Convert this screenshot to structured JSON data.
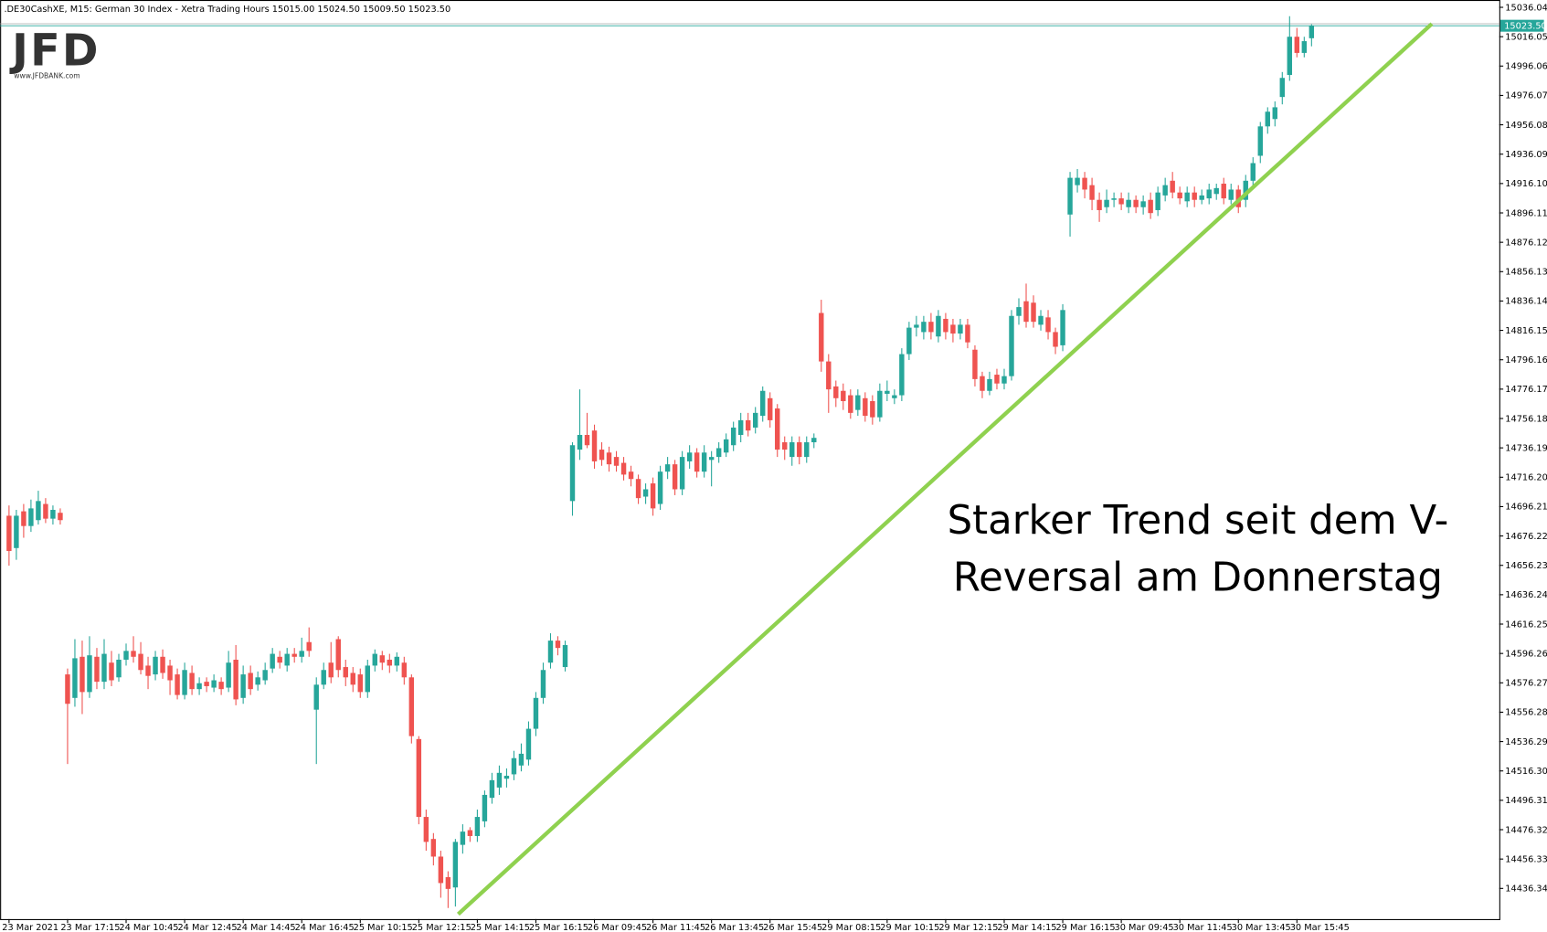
{
  "chart_data": {
    "type": "candlestick",
    "header": ".DE30CashXE, M15:  German 30 Index  - Xetra Trading Hours  15015.00 15024.50 15009.50 15023.50",
    "logo": {
      "mark": "JFD",
      "url": "www.JFDBANK.com"
    },
    "annotation": [
      "Starker Trend seit dem V-",
      "Reversal am Donnerstag"
    ],
    "up_color": "#26a69a",
    "down_color": "#ef5350",
    "last_price": {
      "value": 15023.5,
      "label": "15023.50"
    },
    "ylim": [
      14415.45,
      15041.02
    ],
    "yticks": [
      15036.04,
      15016.05,
      14996.06,
      14976.07,
      14956.08,
      14936.09,
      {
        "value": 14916.1,
        "label": "14916.10"
      },
      14896.11,
      14876.12,
      14856.13,
      14836.14,
      14816.15,
      14796.16,
      14776.17,
      14756.18,
      14736.19,
      {
        "value": 14716.2,
        "label": "14716.20"
      },
      14696.21,
      14676.22,
      14656.23,
      14636.24,
      14616.25,
      14596.26,
      14576.27,
      14556.28,
      14536.29,
      {
        "value": 14516.3,
        "label": "14516.30"
      },
      14496.31,
      14476.32,
      14456.33,
      14436.34
    ],
    "categories": [
      "23 Mar 2021",
      null,
      null,
      null,
      null,
      null,
      null,
      null,
      "23 Mar 17:15",
      null,
      null,
      null,
      null,
      null,
      null,
      null,
      "24 Mar 10:45",
      null,
      null,
      null,
      null,
      null,
      null,
      null,
      "24 Mar 12:45",
      null,
      null,
      null,
      null,
      null,
      null,
      null,
      "24 Mar 14:45",
      null,
      null,
      null,
      null,
      null,
      null,
      null,
      "24 Mar 16:45",
      null,
      null,
      null,
      null,
      null,
      null,
      null,
      "25 Mar 10:15",
      null,
      null,
      null,
      null,
      null,
      null,
      null,
      "25 Mar 12:15",
      null,
      null,
      null,
      null,
      null,
      null,
      null,
      "25 Mar 14:15",
      null,
      null,
      null,
      null,
      null,
      null,
      null,
      "25 Mar 16:15",
      null,
      null,
      null,
      null,
      null,
      null,
      null,
      "26 Mar 09:45",
      null,
      null,
      null,
      null,
      null,
      null,
      null,
      "26 Mar 11:45",
      null,
      null,
      null,
      null,
      null,
      null,
      null,
      "26 Mar 13:45",
      null,
      null,
      null,
      null,
      null,
      null,
      null,
      "26 Mar 15:45",
      null,
      null,
      null,
      null,
      null,
      null,
      null,
      "29 Mar 08:15",
      null,
      null,
      null,
      null,
      null,
      null,
      null,
      "29 Mar 10:15",
      null,
      null,
      null,
      null,
      null,
      null,
      null,
      "29 Mar 12:15",
      null,
      null,
      null,
      null,
      null,
      null,
      null,
      "29 Mar 14:15",
      null,
      null,
      null,
      null,
      null,
      null,
      null,
      "29 Mar 16:15",
      null,
      null,
      null,
      null,
      null,
      null,
      null,
      "30 Mar 09:45",
      null,
      null,
      null,
      null,
      null,
      null,
      null,
      "30 Mar 11:45",
      null,
      null,
      null,
      null,
      null,
      null,
      null,
      "30 Mar 13:45",
      null,
      null,
      null,
      null,
      null,
      null,
      null,
      "30 Mar 15:45",
      null,
      null
    ],
    "candles": [
      [
        14690,
        14697,
        14656,
        14666
      ],
      [
        14668,
        14694,
        14660,
        14690
      ],
      [
        14693,
        14698,
        14675,
        14683
      ],
      [
        14683,
        14701,
        14679,
        14695
      ],
      [
        14687,
        14707,
        14684,
        14700
      ],
      [
        14698,
        14702,
        14685,
        14688
      ],
      [
        14688,
        14697,
        14684,
        14694
      ],
      [
        14692,
        14695,
        14684,
        14687
      ],
      [
        14582,
        14586,
        14521,
        14562
      ],
      [
        14566,
        14606,
        14560,
        14593
      ],
      [
        14594,
        14605,
        14555,
        14570
      ],
      [
        14570,
        14608,
        14566,
        14595
      ],
      [
        14594,
        14600,
        14572,
        14577
      ],
      [
        14577,
        14606,
        14572,
        14596
      ],
      [
        14590,
        14598,
        14574,
        14578
      ],
      [
        14580,
        14596,
        14577,
        14592
      ],
      [
        14592,
        14603,
        14588,
        14598
      ],
      [
        14598,
        14608,
        14590,
        14594
      ],
      [
        14596,
        14604,
        14582,
        14585
      ],
      [
        14588,
        14594,
        14572,
        14581
      ],
      [
        14582,
        14598,
        14578,
        14594
      ],
      [
        14594,
        14599,
        14579,
        14583
      ],
      [
        14588,
        14592,
        14568,
        14578
      ],
      [
        14582,
        14586,
        14565,
        14568
      ],
      [
        14568,
        14590,
        14565,
        14585
      ],
      [
        14583,
        14588,
        14568,
        14572
      ],
      [
        14572,
        14580,
        14568,
        14576
      ],
      [
        14577,
        14580,
        14570,
        14574
      ],
      [
        14573,
        14582,
        14570,
        14578
      ],
      [
        14577,
        14580,
        14568,
        14572
      ],
      [
        14573,
        14598,
        14570,
        14590
      ],
      [
        14592,
        14602,
        14561,
        14565
      ],
      [
        14566,
        14588,
        14562,
        14582
      ],
      [
        14583,
        14588,
        14568,
        14572
      ],
      [
        14575,
        14584,
        14571,
        14580
      ],
      [
        14578,
        14590,
        14575,
        14585
      ],
      [
        14586,
        14600,
        14583,
        14596
      ],
      [
        14594,
        14598,
        14586,
        14590
      ],
      [
        14588,
        14600,
        14584,
        14596
      ],
      [
        14596,
        14600,
        14590,
        14594
      ],
      [
        14594,
        14607,
        14590,
        14598
      ],
      [
        14604,
        14614,
        14594,
        14598
      ],
      [
        14558,
        14580,
        14521,
        14575
      ],
      [
        14575,
        14590,
        14572,
        14585
      ],
      [
        14590,
        14604,
        14576,
        14580
      ],
      [
        14606,
        14608,
        14580,
        14585
      ],
      [
        14587,
        14592,
        14574,
        14580
      ],
      [
        14583,
        14587,
        14570,
        14575
      ],
      [
        14582,
        14586,
        14566,
        14570
      ],
      [
        14570,
        14592,
        14566,
        14588
      ],
      [
        14588,
        14599,
        14584,
        14596
      ],
      [
        14595,
        14598,
        14585,
        14590
      ],
      [
        14592,
        14596,
        14583,
        14588
      ],
      [
        14588,
        14597,
        14584,
        14594
      ],
      [
        14590,
        14594,
        14575,
        14580
      ],
      [
        14580,
        14582,
        14535,
        14540
      ],
      [
        14538,
        14540,
        14480,
        14485
      ],
      [
        14485,
        14490,
        14462,
        14468
      ],
      [
        14470,
        14474,
        14452,
        14458
      ],
      [
        14458,
        14462,
        14430,
        14440
      ],
      [
        14444,
        14448,
        14423,
        14436
      ],
      [
        14437,
        14470,
        14424,
        14468
      ],
      [
        14466,
        14480,
        14460,
        14475
      ],
      [
        14476,
        14478,
        14468,
        14472
      ],
      [
        14472,
        14490,
        14468,
        14485
      ],
      [
        14482,
        14503,
        14478,
        14500
      ],
      [
        14498,
        14515,
        14494,
        14510
      ],
      [
        14505,
        14520,
        14500,
        14515
      ],
      [
        14511,
        14518,
        14505,
        14513
      ],
      [
        14514,
        14530,
        14510,
        14525
      ],
      [
        14520,
        14535,
        14516,
        14528
      ],
      [
        14524,
        14550,
        14520,
        14545
      ],
      [
        14545,
        14570,
        14540,
        14566
      ],
      [
        14566,
        14590,
        14562,
        14585
      ],
      [
        14590,
        14610,
        14586,
        14605
      ],
      [
        14605,
        14608,
        14595,
        14600
      ],
      [
        14587,
        14605,
        14584,
        14602
      ],
      [
        14700,
        14740,
        14690,
        14738
      ],
      [
        14735,
        14776,
        14728,
        14745
      ],
      [
        14745,
        14760,
        14736,
        14738
      ],
      [
        14748,
        14752,
        14722,
        14727
      ],
      [
        14735,
        14740,
        14724,
        14728
      ],
      [
        14733,
        14737,
        14720,
        14725
      ],
      [
        14730,
        14734,
        14720,
        14724
      ],
      [
        14726,
        14730,
        14714,
        14718
      ],
      [
        14720,
        14724,
        14710,
        14715
      ],
      [
        14715,
        14718,
        14698,
        14702
      ],
      [
        14703,
        14712,
        14698,
        14708
      ],
      [
        14712,
        14716,
        14690,
        14695
      ],
      [
        14698,
        14724,
        14694,
        14720
      ],
      [
        14720,
        14730,
        14715,
        14725
      ],
      [
        14725,
        14728,
        14704,
        14708
      ],
      [
        14708,
        14734,
        14704,
        14730
      ],
      [
        14727,
        14738,
        14722,
        14733
      ],
      [
        14733,
        14736,
        14716,
        14720
      ],
      [
        14720,
        14738,
        14716,
        14733
      ],
      [
        14728,
        14734,
        14710,
        14730
      ],
      [
        14730,
        14740,
        14726,
        14736
      ],
      [
        14733,
        14746,
        14730,
        14742
      ],
      [
        14738,
        14754,
        14734,
        14750
      ],
      [
        14745,
        14760,
        14740,
        14755
      ],
      [
        14755,
        14760,
        14744,
        14748
      ],
      [
        14750,
        14764,
        14746,
        14760
      ],
      [
        14758,
        14778,
        14754,
        14775
      ],
      [
        14770,
        14774,
        14750,
        14755
      ],
      [
        14763,
        14766,
        14730,
        14735
      ],
      [
        14740,
        14744,
        14728,
        14735
      ],
      [
        14730,
        14744,
        14724,
        14740
      ],
      [
        14740,
        14744,
        14725,
        14730
      ],
      [
        14730,
        14744,
        14726,
        14740
      ],
      [
        14740,
        14746,
        14736,
        14743
      ],
      [
        14828,
        14837,
        14788,
        14795
      ],
      [
        14795,
        14800,
        14760,
        14776
      ],
      [
        14778,
        14782,
        14764,
        14770
      ],
      [
        14775,
        14780,
        14762,
        14768
      ],
      [
        14772,
        14776,
        14756,
        14760
      ],
      [
        14762,
        14776,
        14758,
        14772
      ],
      [
        14770,
        14774,
        14754,
        14758
      ],
      [
        14768,
        14772,
        14752,
        14757
      ],
      [
        14757,
        14780,
        14754,
        14775
      ],
      [
        14773,
        14782,
        14768,
        14775
      ],
      [
        14770,
        14776,
        14766,
        14772
      ],
      [
        14772,
        14804,
        14768,
        14800
      ],
      [
        14800,
        14822,
        14796,
        14818
      ],
      [
        14818,
        14826,
        14812,
        14820
      ],
      [
        14815,
        14826,
        14810,
        14822
      ],
      [
        14822,
        14828,
        14810,
        14815
      ],
      [
        14812,
        14830,
        14808,
        14826
      ],
      [
        14824,
        14828,
        14810,
        14815
      ],
      [
        14820,
        14824,
        14808,
        14814
      ],
      [
        14814,
        14824,
        14810,
        14820
      ],
      [
        14820,
        14824,
        14804,
        14808
      ],
      [
        14803,
        14806,
        14778,
        14783
      ],
      [
        14785,
        14788,
        14770,
        14775
      ],
      [
        14775,
        14788,
        14772,
        14783
      ],
      [
        14786,
        14790,
        14776,
        14780
      ],
      [
        14780,
        14790,
        14776,
        14785
      ],
      [
        14785,
        14830,
        14782,
        14826
      ],
      [
        14826,
        14838,
        14820,
        14832
      ],
      [
        14836,
        14848,
        14818,
        14822
      ],
      [
        14835,
        14840,
        14818,
        14822
      ],
      [
        14820,
        14830,
        14816,
        14826
      ],
      [
        14825,
        14830,
        14810,
        14815
      ],
      [
        14815,
        14818,
        14800,
        14805
      ],
      [
        14806,
        14834,
        14802,
        14830
      ],
      [
        14895,
        14924,
        14880,
        14920
      ],
      [
        14915,
        14926,
        14910,
        14920
      ],
      [
        14920,
        14924,
        14906,
        14912
      ],
      [
        14915,
        14920,
        14898,
        14905
      ],
      [
        14905,
        14910,
        14890,
        14898
      ],
      [
        14900,
        14912,
        14896,
        14905
      ],
      [
        14905,
        14910,
        14900,
        14906
      ],
      [
        14906,
        14910,
        14898,
        14902
      ],
      [
        14900,
        14910,
        14896,
        14905
      ],
      [
        14905,
        14908,
        14896,
        14900
      ],
      [
        14900,
        14908,
        14895,
        14904
      ],
      [
        14905,
        14910,
        14892,
        14896
      ],
      [
        14898,
        14914,
        14894,
        14910
      ],
      [
        14908,
        14920,
        14904,
        14915
      ],
      [
        14918,
        14924,
        14906,
        14910
      ],
      [
        14910,
        14914,
        14902,
        14906
      ],
      [
        14904,
        14914,
        14900,
        14910
      ],
      [
        14910,
        14914,
        14900,
        14905
      ],
      [
        14905,
        14912,
        14902,
        14908
      ],
      [
        14906,
        14916,
        14902,
        14912
      ],
      [
        14909,
        14916,
        14905,
        14913
      ],
      [
        14916,
        14920,
        14902,
        14906
      ],
      [
        14905,
        14916,
        14902,
        14912
      ],
      [
        14912,
        14915,
        14896,
        14900
      ],
      [
        14905,
        14922,
        14900,
        14918
      ],
      [
        14918,
        14934,
        14914,
        14930
      ],
      [
        14935,
        14958,
        14930,
        14955
      ],
      [
        14955,
        14968,
        14950,
        14965
      ],
      [
        14960,
        14972,
        14955,
        14968
      ],
      [
        14975,
        14992,
        14970,
        14988
      ],
      [
        14990,
        15030,
        14986,
        15016
      ],
      [
        15016,
        15022,
        15002,
        15005
      ],
      [
        15005,
        15016,
        15002,
        15013
      ],
      [
        15015,
        15024.5,
        15009.5,
        15023.5
      ]
    ]
  }
}
